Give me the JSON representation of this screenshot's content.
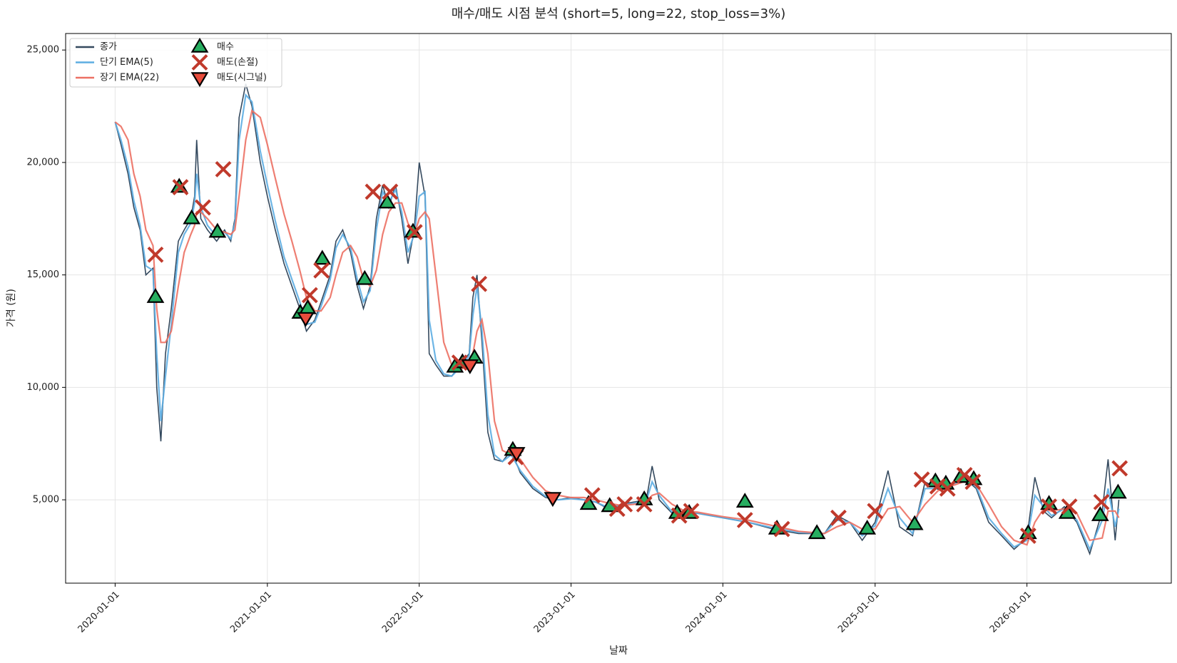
{
  "chart_data": {
    "type": "line",
    "title": "매수/매도 시점 분석 (short=5, long=22, stop_loss=3%)",
    "x_label": "날짜",
    "y_label": "가격 (원)",
    "xlim": [
      "2019-09-04",
      "2026-12-14"
    ],
    "xticks": [
      "2020-01-01",
      "2021-01-01",
      "2022-01-01",
      "2023-01-01",
      "2024-01-01",
      "2025-01-01",
      "2026-01-01"
    ],
    "ylim": [
      1294,
      25734
    ],
    "yticks": [
      {
        "value": 5000,
        "label": "5,000"
      },
      {
        "value": 10000,
        "label": "10,000"
      },
      {
        "value": 15000,
        "label": "15,000"
      },
      {
        "value": 20000,
        "label": "20,000"
      },
      {
        "value": 25000,
        "label": "25,000"
      }
    ],
    "grid": true,
    "legend": "upper left",
    "x": [
      "2020-01-01",
      "2020-01-15",
      "2020-02-01",
      "2020-02-15",
      "2020-03-01",
      "2020-03-15",
      "2020-04-01",
      "2020-04-10",
      "2020-04-20",
      "2020-05-01",
      "2020-05-15",
      "2020-06-01",
      "2020-06-15",
      "2020-07-01",
      "2020-07-10",
      "2020-07-15",
      "2020-07-25",
      "2020-08-10",
      "2020-09-01",
      "2020-09-20",
      "2020-10-05",
      "2020-10-15",
      "2020-10-25",
      "2020-11-10",
      "2020-11-25",
      "2020-12-15",
      "2021-01-01",
      "2021-01-20",
      "2021-02-10",
      "2021-03-01",
      "2021-03-20",
      "2021-04-05",
      "2021-04-25",
      "2021-05-10",
      "2021-06-01",
      "2021-06-15",
      "2021-07-01",
      "2021-07-20",
      "2021-08-05",
      "2021-08-20",
      "2021-09-05",
      "2021-09-20",
      "2021-10-05",
      "2021-10-20",
      "2021-11-05",
      "2021-11-20",
      "2021-12-05",
      "2021-12-20",
      "2022-01-01",
      "2022-01-15",
      "2022-01-25",
      "2022-02-10",
      "2022-03-01",
      "2022-03-20",
      "2022-04-10",
      "2022-05-01",
      "2022-05-10",
      "2022-05-20",
      "2022-06-01",
      "2022-06-15",
      "2022-07-01",
      "2022-07-20",
      "2022-08-10",
      "2022-09-01",
      "2022-10-01",
      "2022-11-01",
      "2022-12-01",
      "2023-01-01",
      "2023-02-01",
      "2023-03-01",
      "2023-04-01",
      "2023-05-01",
      "2023-06-01",
      "2023-07-01",
      "2023-07-15",
      "2023-08-01",
      "2023-09-01",
      "2023-10-01",
      "2023-11-01",
      "2023-12-01",
      "2024-01-01",
      "2024-03-01",
      "2024-05-01",
      "2024-07-01",
      "2024-09-01",
      "2024-10-01",
      "2024-11-01",
      "2024-12-01",
      "2025-01-01",
      "2025-02-01",
      "2025-03-01",
      "2025-04-01",
      "2025-05-01",
      "2025-06-01",
      "2025-07-01",
      "2025-08-01",
      "2025-09-01",
      "2025-10-01",
      "2025-11-01",
      "2025-12-01",
      "2026-01-01",
      "2026-01-20",
      "2026-02-10",
      "2026-03-01",
      "2026-04-01",
      "2026-05-01",
      "2026-06-01",
      "2026-07-01",
      "2026-07-15",
      "2026-08-01",
      "2026-08-10"
    ],
    "series": [
      {
        "name": "종가",
        "color": "#34495e",
        "values": [
          21800,
          20800,
          19500,
          18000,
          17000,
          15000,
          15300,
          10000,
          7600,
          11500,
          13500,
          16500,
          17000,
          17500,
          18500,
          21000,
          17500,
          17000,
          16500,
          17000,
          16500,
          17500,
          22000,
          23500,
          22500,
          20000,
          18500,
          17000,
          15500,
          14500,
          13500,
          12500,
          13000,
          13800,
          15000,
          16500,
          17000,
          16000,
          14500,
          13500,
          14500,
          17500,
          19000,
          18000,
          19000,
          17500,
          15500,
          17000,
          20000,
          18500,
          11500,
          11000,
          10500,
          10500,
          11000,
          11500,
          14000,
          15000,
          12000,
          8000,
          6800,
          6700,
          7200,
          6200,
          5500,
          5100,
          5000,
          5100,
          5000,
          4900,
          4600,
          4800,
          4900,
          5000,
          6500,
          5000,
          4400,
          4400,
          4400,
          4300,
          4200,
          4000,
          3700,
          3500,
          3500,
          4300,
          4000,
          3200,
          4000,
          6300,
          3800,
          3400,
          5800,
          5500,
          5700,
          6000,
          5500,
          4000,
          3400,
          2800,
          3300,
          6000,
          4500,
          4200,
          4700,
          4000,
          2600,
          4500,
          6800,
          3200,
          5000
        ]
      },
      {
        "name": "단기 EMA(5)",
        "color": "#5dade2",
        "values": [
          21800,
          21000,
          19800,
          18300,
          17200,
          15400,
          15200,
          11500,
          8500,
          10500,
          12800,
          16000,
          16800,
          17300,
          18200,
          19500,
          18000,
          17200,
          16700,
          16900,
          16600,
          17300,
          21000,
          23000,
          22700,
          20500,
          19000,
          17400,
          15800,
          14800,
          13800,
          12800,
          12900,
          13600,
          14800,
          16200,
          16800,
          16200,
          14800,
          13800,
          14300,
          17000,
          18700,
          18200,
          18800,
          17800,
          16000,
          16800,
          18500,
          18700,
          13000,
          11200,
          10600,
          10500,
          10900,
          11400,
          13200,
          14500,
          12500,
          8800,
          7000,
          6700,
          7000,
          6300,
          5600,
          5150,
          5000,
          5050,
          5000,
          4900,
          4650,
          4750,
          4850,
          4950,
          5800,
          5200,
          4450,
          4400,
          4400,
          4300,
          4200,
          4000,
          3750,
          3550,
          3500,
          4100,
          4000,
          3400,
          3850,
          5500,
          4200,
          3500,
          5500,
          5500,
          5650,
          5900,
          5600,
          4200,
          3500,
          2900,
          3200,
          5200,
          4700,
          4300,
          4600,
          4100,
          2800,
          4100,
          5500,
          3800,
          4600
        ]
      },
      {
        "name": "장기 EMA(22)",
        "color": "#ec7063",
        "values": [
          21800,
          21600,
          21000,
          19500,
          18500,
          17000,
          16300,
          13500,
          12000,
          12000,
          12500,
          14500,
          16000,
          16800,
          17200,
          17800,
          17800,
          17500,
          17000,
          16900,
          16800,
          17000,
          18500,
          21000,
          22300,
          22000,
          20800,
          19300,
          17700,
          16500,
          15200,
          14000,
          13400,
          13400,
          14000,
          15000,
          16000,
          16300,
          15800,
          14800,
          14500,
          15200,
          16800,
          17800,
          18200,
          18200,
          17300,
          16800,
          17500,
          17800,
          17500,
          15000,
          12000,
          11000,
          10800,
          11000,
          11500,
          12500,
          13000,
          11500,
          8500,
          7200,
          7000,
          6800,
          6000,
          5400,
          5200,
          5100,
          5100,
          5000,
          4850,
          4750,
          4800,
          4900,
          5200,
          5300,
          4800,
          4500,
          4450,
          4350,
          4250,
          4100,
          3850,
          3600,
          3500,
          3800,
          4000,
          3700,
          3700,
          4600,
          4700,
          4000,
          4800,
          5400,
          5600,
          5800,
          5700,
          4800,
          3800,
          3200,
          3000,
          4000,
          4600,
          4500,
          4600,
          4400,
          3200,
          3300,
          4500,
          4500,
          4200
        ]
      }
    ],
    "markers": [
      {
        "name": "매수",
        "marker": "triangle-up",
        "color": "#27ae60",
        "x": [
          "2020-04-07",
          "2020-06-03",
          "2020-07-03",
          "2020-09-03",
          "2021-03-21",
          "2021-04-08",
          "2021-05-13",
          "2021-08-23",
          "2021-10-16",
          "2021-12-17",
          "2022-03-28",
          "2022-04-15",
          "2022-05-14",
          "2022-08-14",
          "2023-02-12",
          "2023-04-04",
          "2023-06-26",
          "2023-09-13",
          "2023-10-12",
          "2024-02-23",
          "2024-05-10",
          "2024-08-14",
          "2024-12-13",
          "2025-04-06",
          "2025-05-26",
          "2025-06-20",
          "2025-07-26",
          "2025-08-26",
          "2026-01-04",
          "2026-02-23",
          "2026-04-08",
          "2026-06-26",
          "2026-08-08"
        ],
        "values": [
          14000,
          18900,
          17500,
          16900,
          13300,
          13500,
          15700,
          14800,
          18200,
          16900,
          10900,
          11100,
          11300,
          7200,
          4800,
          4700,
          5000,
          4400,
          4400,
          4900,
          3700,
          3500,
          3700,
          3900,
          5800,
          5700,
          6000,
          5900,
          3500,
          4800,
          4400,
          4300,
          5300
        ]
      },
      {
        "name": "매도(손절)",
        "marker": "x",
        "color": "#c0392b",
        "x": [
          "2020-04-07",
          "2020-06-06",
          "2020-07-30",
          "2020-09-17",
          "2021-04-13",
          "2021-05-11",
          "2021-09-12",
          "2021-10-23",
          "2021-12-21",
          "2022-04-08",
          "2022-05-25",
          "2022-08-21",
          "2023-02-21",
          "2023-04-22",
          "2023-05-10",
          "2023-06-26",
          "2023-09-18",
          "2023-10-17",
          "2024-02-23",
          "2024-05-22",
          "2024-10-05",
          "2025-01-01",
          "2025-04-23",
          "2025-05-31",
          "2025-06-24",
          "2025-08-04",
          "2025-08-24",
          "2026-01-04",
          "2026-02-23",
          "2026-04-13",
          "2026-06-29",
          "2026-08-12"
        ],
        "values": [
          15900,
          18900,
          18000,
          19700,
          14100,
          15200,
          18700,
          18700,
          16900,
          11100,
          14600,
          6900,
          5200,
          4600,
          4800,
          4800,
          4300,
          4500,
          4100,
          3700,
          4200,
          4500,
          5900,
          5600,
          5500,
          6100,
          5800,
          3400,
          4700,
          4700,
          4900,
          6400
        ]
      },
      {
        "name": "매도(시그널)",
        "marker": "triangle-down",
        "color": "#e74c3c",
        "x": [
          "2021-04-03",
          "2022-05-03",
          "2022-08-23",
          "2022-11-18"
        ],
        "values": [
          13100,
          11000,
          7100,
          5100
        ]
      }
    ]
  }
}
